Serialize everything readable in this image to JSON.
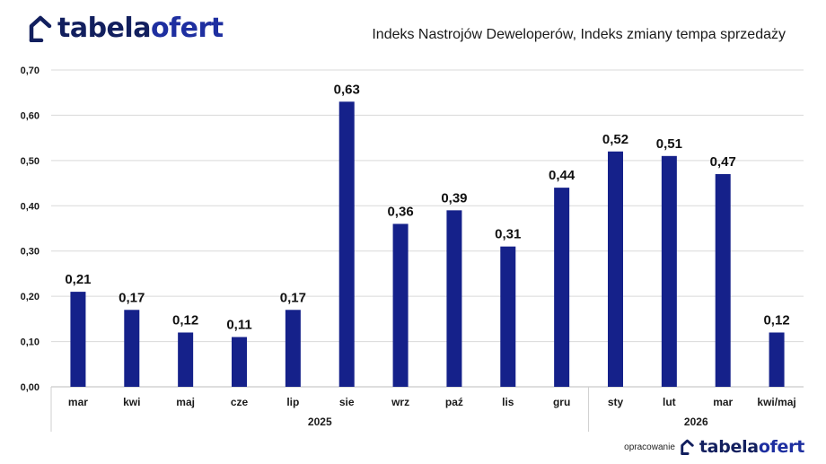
{
  "brand": {
    "logo_part1": "tabela",
    "logo_part2": "ofert",
    "icon": "house-outline-icon",
    "color_dark": "#121f5e",
    "color_accent": "#1e2fa0"
  },
  "title": "Indeks Nastrojów Deweloperów, Indeks zmiany tempa sprzedaży",
  "footer": {
    "label": "opracowanie",
    "logo_part1": "tabela",
    "logo_part2": "ofert"
  },
  "chart_data": {
    "type": "bar",
    "categories": [
      "mar",
      "kwi",
      "maj",
      "cze",
      "lip",
      "sie",
      "wrz",
      "paź",
      "lis",
      "gru",
      "sty",
      "lut",
      "mar",
      "kwi/maj"
    ],
    "values": [
      0.21,
      0.17,
      0.12,
      0.11,
      0.17,
      0.63,
      0.36,
      0.39,
      0.31,
      0.44,
      0.52,
      0.51,
      0.47,
      0.12
    ],
    "value_labels": [
      "0,21",
      "0,17",
      "0,12",
      "0,11",
      "0,17",
      "0,63",
      "0,36",
      "0,39",
      "0,31",
      "0,44",
      "0,52",
      "0,51",
      "0,47",
      "0,12"
    ],
    "year_groups": [
      {
        "label": "2025",
        "start": 0,
        "end": 9
      },
      {
        "label": "2026",
        "start": 10,
        "end": 13
      }
    ],
    "ylim": [
      0,
      0.7
    ],
    "yticks": [
      0,
      0.1,
      0.2,
      0.3,
      0.4,
      0.5,
      0.6,
      0.7
    ],
    "ytick_labels": [
      "0,00",
      "0,10",
      "0,20",
      "0,30",
      "0,40",
      "0,50",
      "0,60",
      "0,70"
    ],
    "grid": true,
    "bar_color": "#15218a"
  }
}
